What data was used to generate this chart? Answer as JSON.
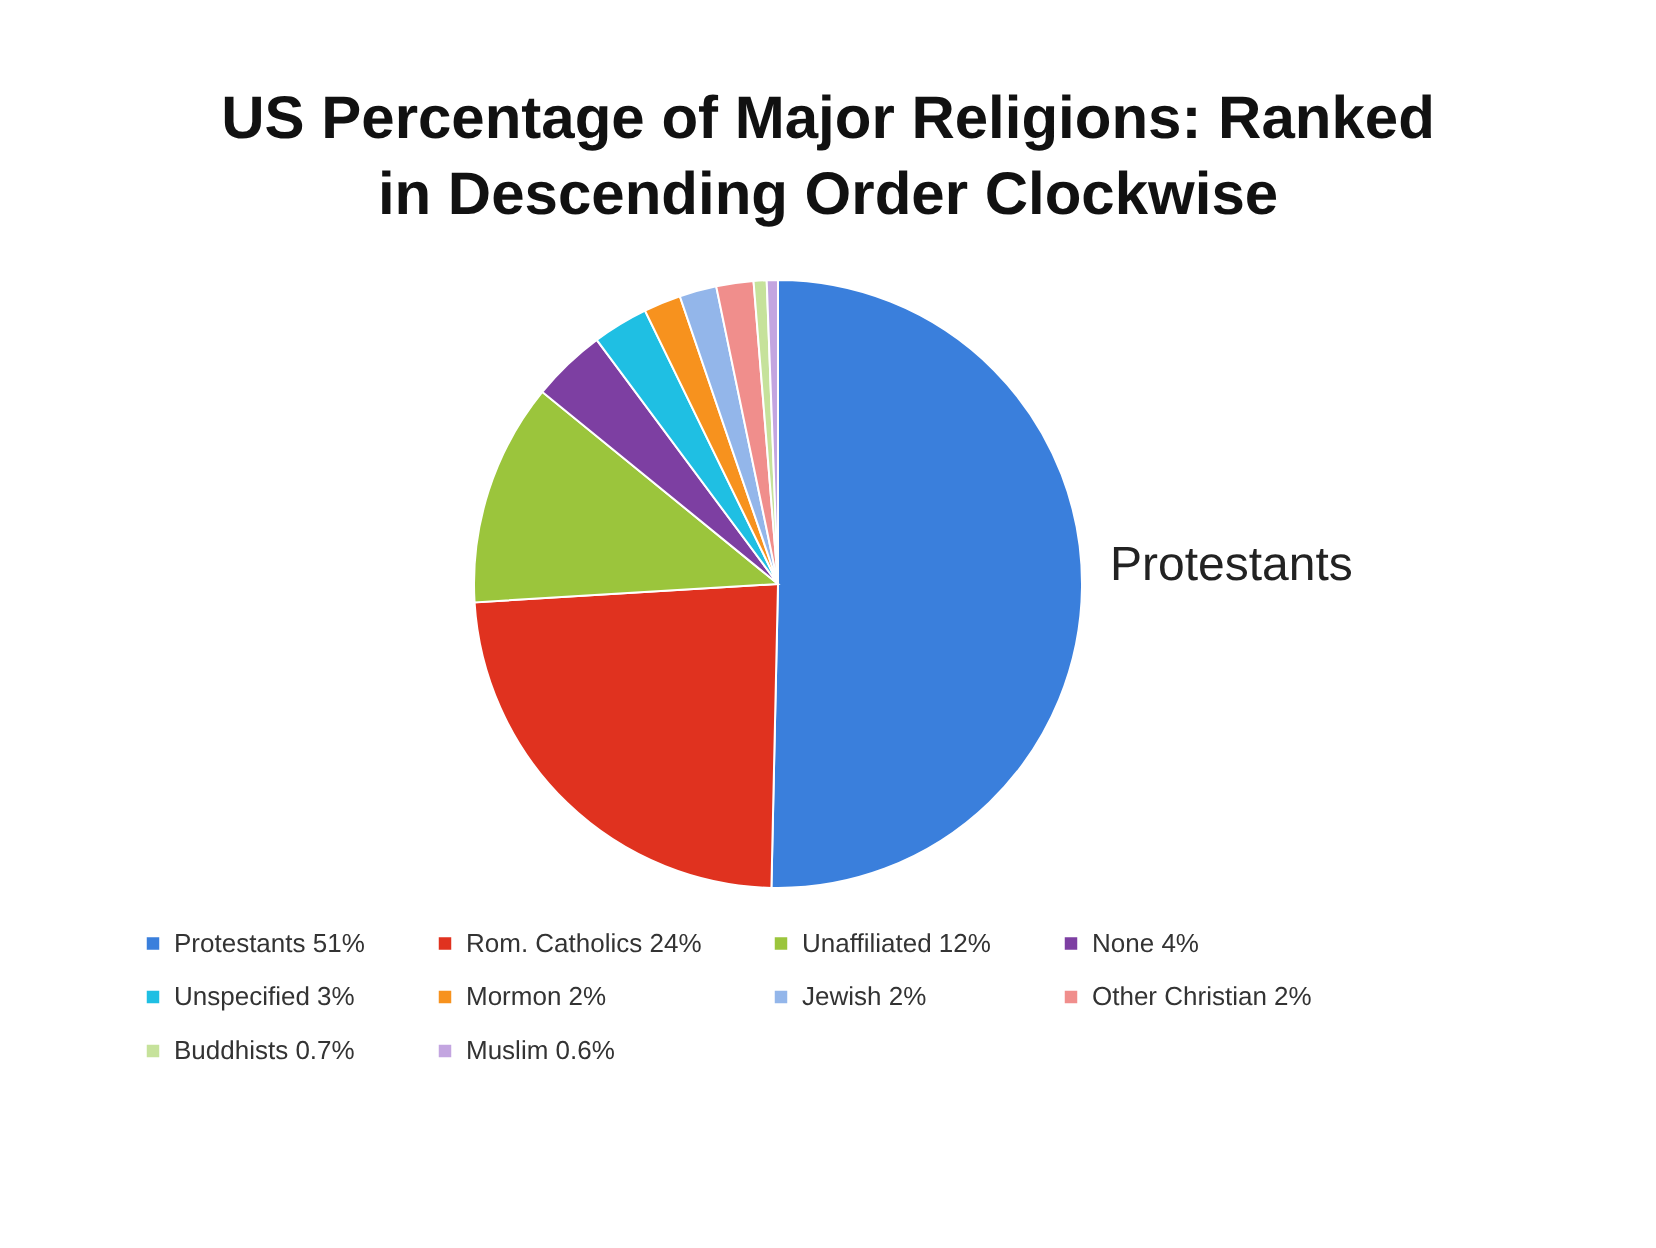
{
  "chart_data": {
    "type": "pie",
    "title": [
      "US Percentage of Major Religions: Ranked",
      "in Descending Order Clockwise"
    ],
    "categories": [
      "Protestants 51%",
      "Rom. Catholics 24%",
      "Unaffiliated 12%",
      "None 4%",
      "Unspecified 3%",
      "Mormon 2%",
      "Jewish 2%",
      "Other Christian 2%",
      "Buddhists 0.7%",
      "Muslim 0.6%"
    ],
    "values": [
      51,
      24,
      12,
      4,
      3,
      2,
      2,
      2,
      0.7,
      0.6
    ],
    "colors": [
      "#3a7fdc",
      "#e0321f",
      "#9bc53c",
      "#7d3fa2",
      "#1fbfe3",
      "#f7921e",
      "#93b6ea",
      "#f08e8c",
      "#c6e29b",
      "#c3a5e0"
    ],
    "annotations": [
      "Protestants"
    ],
    "legend": "bottom"
  }
}
